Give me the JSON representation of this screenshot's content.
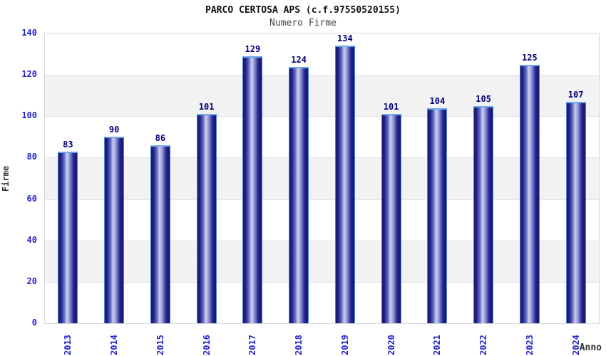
{
  "header": {
    "title": "PARCO CERTOSA APS (c.f.97550520155)",
    "subtitle": "Numero Firme"
  },
  "chart_data": {
    "type": "bar",
    "title": "PARCO CERTOSA APS (c.f.97550520155)",
    "subtitle": "Numero Firme",
    "xlabel": "Anno",
    "ylabel": "Firme",
    "categories": [
      "2013",
      "2014",
      "2015",
      "2016",
      "2017",
      "2018",
      "2019",
      "2020",
      "2021",
      "2022",
      "2023",
      "2024"
    ],
    "values": [
      83,
      90,
      86,
      101,
      129,
      124,
      134,
      101,
      104,
      105,
      125,
      107
    ],
    "ylim": [
      0,
      140
    ],
    "yticks": [
      0,
      20,
      40,
      60,
      80,
      100,
      120,
      140
    ],
    "grid": true,
    "alternating_bands": true,
    "legend": "none",
    "colors": {
      "tick_label": "#2222cc",
      "value_label": "#00007a",
      "bar_edge_dark": "#161665",
      "bar_highlight": "#ccd1f2",
      "bar_cap": "#6fa8e8",
      "band_gray": "#f2f2f2",
      "gridline": "#e2e2e2",
      "plot_border": "#d8d8d8",
      "title_color": "#111111",
      "subtitle_color": "#444444",
      "axis_label_color": "#333333"
    }
  }
}
